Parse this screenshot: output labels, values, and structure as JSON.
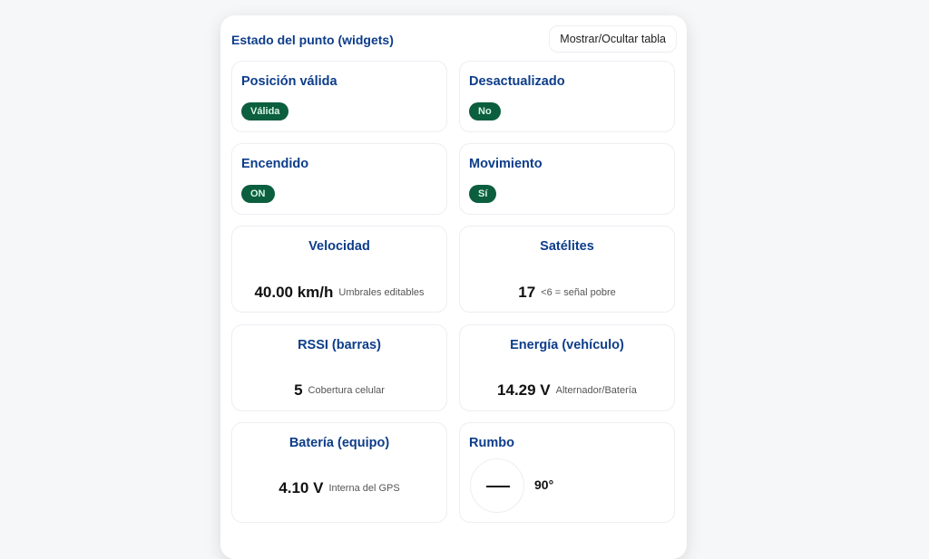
{
  "panel": {
    "title": "Estado del punto (widgets)",
    "toggle_label": "Mostrar/Ocultar tabla"
  },
  "status_cards": [
    {
      "title": "Posición válida",
      "badge": "Válida"
    },
    {
      "title": "Desactualizado",
      "badge": "No"
    },
    {
      "title": "Encendido",
      "badge": "ON"
    },
    {
      "title": "Movimiento",
      "badge": "Sí"
    }
  ],
  "metrics": [
    {
      "title": "Velocidad",
      "value": "40.00 km/h",
      "note": "Umbrales editables"
    },
    {
      "title": "Satélites",
      "value": "17",
      "note": "<6 = señal pobre"
    },
    {
      "title": "RSSI (barras)",
      "value": "5",
      "note": "Cobertura celular"
    },
    {
      "title": "Energía (vehículo)",
      "value": "14.29 V",
      "note": "Alternador/Batería"
    },
    {
      "title": "Batería (equipo)",
      "value": "4.10 V",
      "note": "Interna del GPS"
    }
  ],
  "heading": {
    "title": "Rumbo",
    "value": "90°",
    "degrees": 90
  },
  "colors": {
    "title": "#0d3d8a",
    "badge_bg": "#0b5e3e",
    "badge_text": "#d7f5e5"
  }
}
